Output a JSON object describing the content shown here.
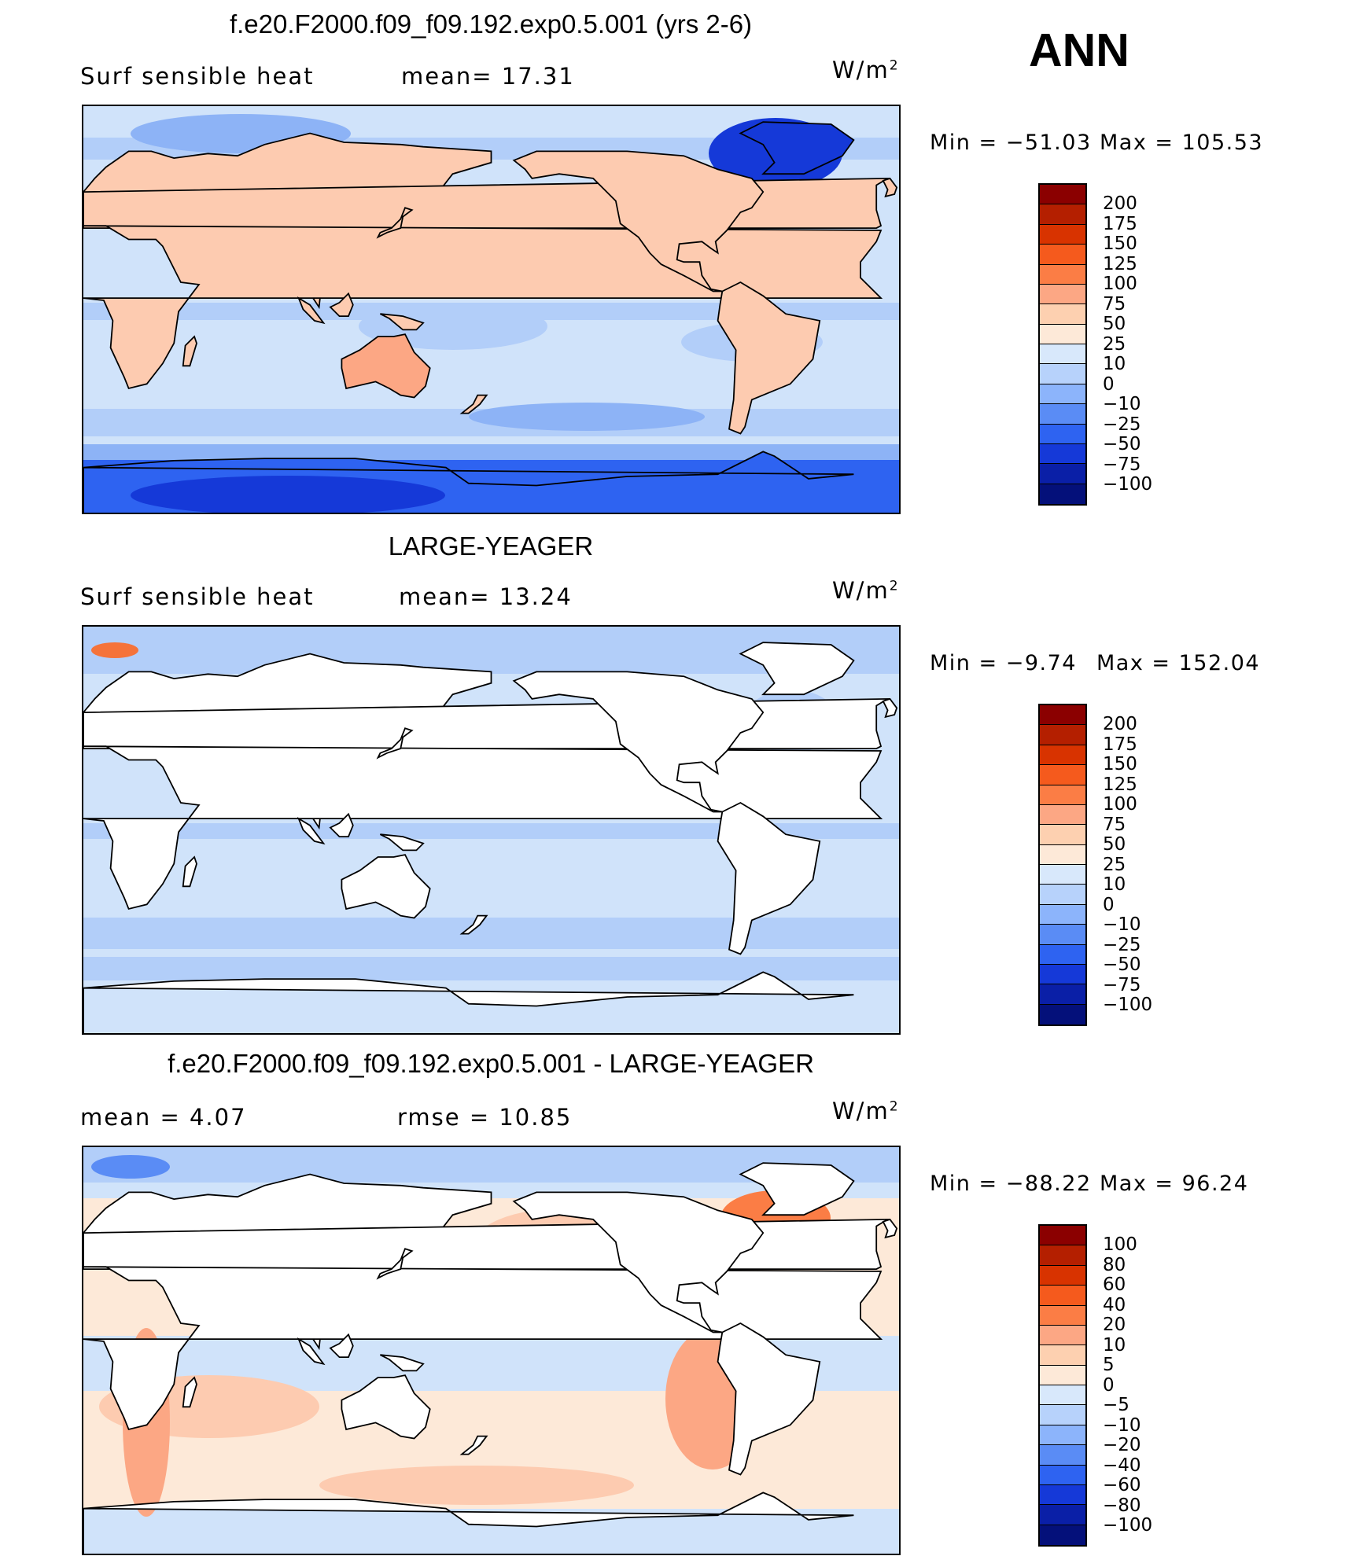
{
  "season": "ANN",
  "panels": [
    {
      "title": "f.e20.F2000.f09_f09.192.exp0.5.001 (yrs 2-6)",
      "left_text": "Surf  sensible  heat",
      "mid_text": "mean=   17.31",
      "units_base": "W/m",
      "units_exp": "2",
      "min_label": "Min  =  −51.03",
      "max_label": "Max  =  105.53",
      "min": -51.03,
      "max": 105.53,
      "mean": 17.31,
      "levels": [
        "200",
        "175",
        "150",
        "125",
        "100",
        "75",
        "50",
        "25",
        "10",
        "0",
        "−10",
        "−25",
        "−50",
        "−75",
        "−100"
      ],
      "colors": [
        "#8b0000",
        "#b41f00",
        "#d83300",
        "#f55a1d",
        "#fb7d45",
        "#fca784",
        "#fdd0b0",
        "#fde9d8",
        "#d8e8fb",
        "#b7d2fb",
        "#8cb4fb",
        "#5a8cf5",
        "#2e63f1",
        "#1539d8",
        "#0a1fa7",
        "#04107a"
      ],
      "map_style": "full"
    },
    {
      "title": "LARGE-YEAGER",
      "left_text": "Surf  sensible  heat",
      "mid_text": "mean=   13.24",
      "units_base": "W/m",
      "units_exp": "2",
      "min_label": "Min  =   −9.74",
      "max_label": "Max  =  152.04",
      "min": -9.74,
      "max": 152.04,
      "mean": 13.24,
      "levels": [
        "200",
        "175",
        "150",
        "125",
        "100",
        "75",
        "50",
        "25",
        "10",
        "0",
        "−10",
        "−25",
        "−50",
        "−75",
        "−100"
      ],
      "colors": [
        "#8b0000",
        "#b41f00",
        "#d83300",
        "#f55a1d",
        "#fb7d45",
        "#fca784",
        "#fdd0b0",
        "#fde9d8",
        "#d8e8fb",
        "#b7d2fb",
        "#8cb4fb",
        "#5a8cf5",
        "#2e63f1",
        "#1539d8",
        "#0a1fa7",
        "#04107a"
      ],
      "map_style": "ocean"
    },
    {
      "title": "f.e20.F2000.f09_f09.192.exp0.5.001 - LARGE-YEAGER",
      "left_text": "mean  =     4.07",
      "mid_text": "rmse  =    10.85",
      "units_base": "W/m",
      "units_exp": "2",
      "min_label": "Min  =  −88.22",
      "max_label": "Max  =    96.24",
      "min": -88.22,
      "max": 96.24,
      "mean": 4.07,
      "rmse": 10.85,
      "levels": [
        "100",
        "80",
        "60",
        "40",
        "20",
        "10",
        "5",
        "0",
        "−5",
        "−10",
        "−20",
        "−40",
        "−60",
        "−80",
        "−100"
      ],
      "colors": [
        "#8b0000",
        "#b41f00",
        "#d83300",
        "#f55a1d",
        "#fb7d45",
        "#fca784",
        "#fdd0b0",
        "#fde9d8",
        "#d8e8fb",
        "#b7d2fb",
        "#8cb4fb",
        "#5a8cf5",
        "#2e63f1",
        "#1539d8",
        "#0a1fa7",
        "#04107a"
      ],
      "map_style": "diff"
    }
  ]
}
